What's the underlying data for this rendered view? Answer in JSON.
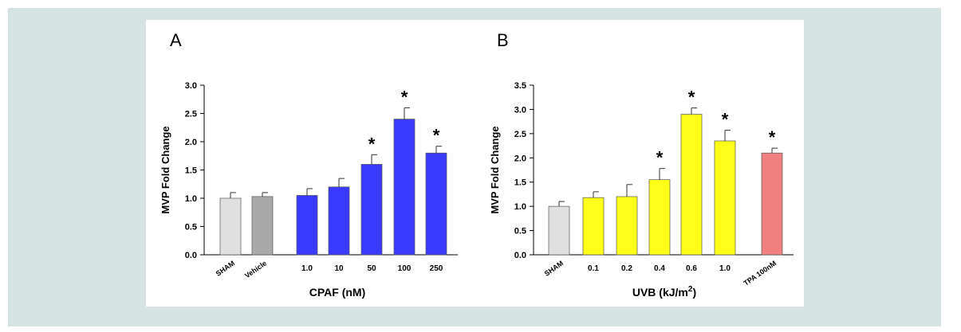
{
  "chart_data": [
    {
      "type": "bar",
      "panel_label": "A",
      "title": "",
      "xlabel": "CPAF (nM)",
      "ylabel": "MVP Fold Change",
      "ylim": [
        0,
        3.0
      ],
      "yticks": [
        "0.0",
        "0.5",
        "1.0",
        "1.5",
        "2.0",
        "2.5",
        "3.0"
      ],
      "grid": false,
      "categories": [
        "SHAM",
        "Vehicle",
        "1.0",
        "10",
        "50",
        "100",
        "250"
      ],
      "rotated_categories": [
        "SHAM",
        "Vehicle"
      ],
      "values": [
        1.0,
        1.03,
        1.05,
        1.2,
        1.6,
        2.4,
        1.8
      ],
      "errors": [
        0.1,
        0.07,
        0.12,
        0.15,
        0.17,
        0.2,
        0.12
      ],
      "significant": [
        false,
        false,
        false,
        false,
        true,
        true,
        true
      ],
      "colors": [
        "#e0e0e0",
        "#a9a9a9",
        "#3a3aff",
        "#3a3aff",
        "#3a3aff",
        "#3a3aff",
        "#3a3aff"
      ],
      "significance_marker": "*"
    },
    {
      "type": "bar",
      "panel_label": "B",
      "title": "",
      "xlabel": "UVB (kJ/m2)",
      "ylabel": "MVP Fold Change",
      "ylim": [
        0,
        3.5
      ],
      "yticks": [
        "0.0",
        "0.5",
        "1.0",
        "1.5",
        "2.0",
        "2.5",
        "3.0",
        "3.5"
      ],
      "grid": false,
      "categories": [
        "SHAM",
        "0.1",
        "0.2",
        "0.4",
        "0.6",
        "1.0",
        "TPA 100nM"
      ],
      "rotated_categories": [
        "SHAM",
        "TPA 100nM"
      ],
      "values": [
        1.0,
        1.18,
        1.2,
        1.55,
        2.9,
        2.35,
        2.1
      ],
      "errors": [
        0.1,
        0.12,
        0.25,
        0.23,
        0.13,
        0.22,
        0.1
      ],
      "significant": [
        false,
        false,
        false,
        true,
        true,
        true,
        true
      ],
      "colors": [
        "#e0e0e0",
        "#ffff1a",
        "#ffff1a",
        "#ffff1a",
        "#ffff1a",
        "#ffff1a",
        "#f08080"
      ],
      "significance_marker": "*"
    }
  ]
}
